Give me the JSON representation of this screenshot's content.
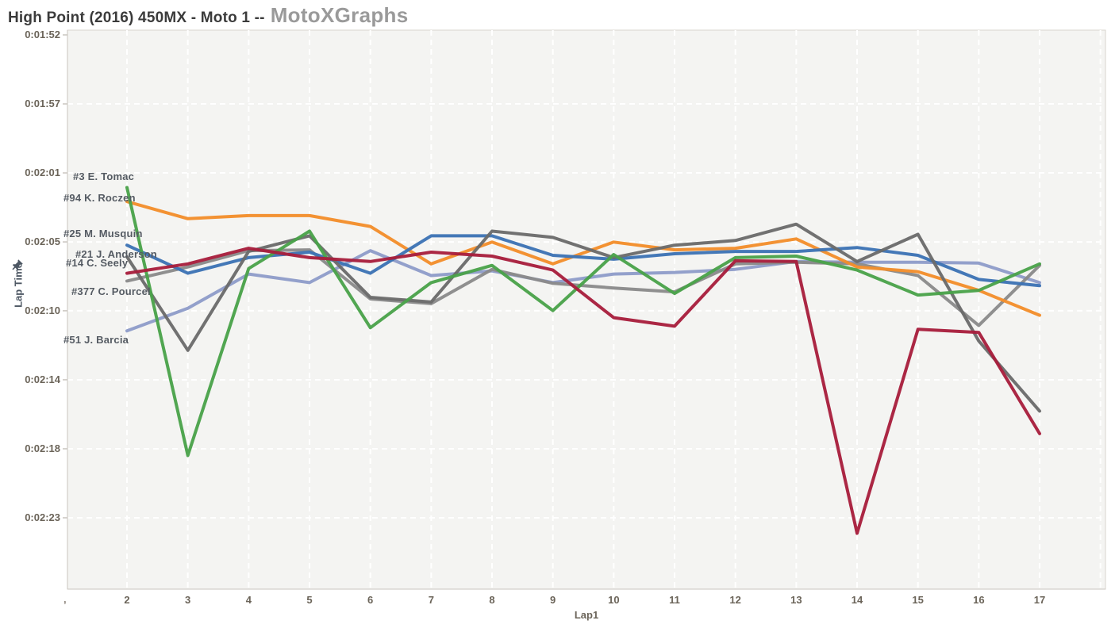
{
  "title": {
    "race": "High Point (2016) 450MX - Moto 1 --",
    "brand": "MotoXGraphs"
  },
  "chart_data": {
    "type": "line",
    "title": "High Point (2016) 450MX - Moto 1 -- MotoXGraphs",
    "xlabel": "Lap1",
    "ylabel": "Lap Time",
    "grid": true,
    "legend_position": "left-inline-labels",
    "y_axis_inverted_note": "time increases downward, faster laps at top",
    "x": [
      2,
      3,
      4,
      5,
      6,
      7,
      8,
      9,
      10,
      11,
      12,
      13,
      14,
      15,
      16,
      17
    ],
    "x_edge_mark": ",",
    "y_ticks": [
      {
        "label": "0:01:52",
        "s": 112.0
      },
      {
        "label": "0:01:57",
        "s": 116.43
      },
      {
        "label": "0:02:01",
        "s": 120.86
      },
      {
        "label": "0:02:05",
        "s": 125.29
      },
      {
        "label": "0:02:10",
        "s": 129.71
      },
      {
        "label": "0:02:14",
        "s": 134.14
      },
      {
        "label": "0:02:18",
        "s": 138.57
      },
      {
        "label": "0:02:23",
        "s": 143.0
      }
    ],
    "series": [
      {
        "id": "barcia",
        "label": "#51 J. Barcia",
        "color": "#8F9CC9",
        "label_s": 131.6,
        "values_s": [
          131.0,
          129.55,
          127.35,
          127.9,
          125.85,
          127.45,
          127.15,
          127.9,
          127.35,
          127.25,
          127.05,
          126.55,
          126.6,
          126.6,
          126.65,
          127.9
        ]
      },
      {
        "id": "pourcel",
        "label": "#377 C. Pourcel",
        "color": "#8A8A8A",
        "label_s": 128.5,
        "values_s": [
          127.8,
          126.9,
          125.85,
          125.8,
          128.95,
          129.25,
          127.05,
          127.95,
          128.25,
          128.5,
          126.7,
          126.6,
          126.7,
          127.45,
          130.65,
          126.8
        ]
      },
      {
        "id": "roczen",
        "label": "#94 K. Roczen",
        "color": "#F28E2B",
        "label_s": 122.5,
        "values_s": [
          122.7,
          123.8,
          123.6,
          123.6,
          124.3,
          126.7,
          125.3,
          126.7,
          125.3,
          125.8,
          125.7,
          125.1,
          126.9,
          127.2,
          128.4,
          130.0
        ]
      },
      {
        "id": "musquin",
        "label": "#25 M. Musquin",
        "color": "#3C73B4",
        "label_s": 124.8,
        "values_s": [
          125.5,
          127.3,
          126.3,
          125.95,
          127.3,
          124.9,
          124.9,
          126.15,
          126.4,
          126.05,
          125.9,
          125.9,
          125.65,
          126.15,
          127.7,
          128.1
        ]
      },
      {
        "id": "anderson",
        "label": "#21 J. Anderson",
        "color": "#6B6B6B",
        "label_s": 126.1,
        "values_s": [
          126.25,
          132.25,
          125.9,
          124.9,
          128.85,
          129.15,
          124.6,
          125.0,
          126.3,
          125.5,
          125.2,
          124.15,
          126.55,
          124.8,
          131.65,
          136.15
        ]
      },
      {
        "id": "tomac",
        "label": "#3 E. Tomac",
        "color": "#4AA24A",
        "label_s": 121.1,
        "values_s": [
          121.8,
          139.0,
          127.0,
          124.6,
          130.8,
          127.9,
          126.8,
          129.7,
          126.1,
          128.6,
          126.3,
          126.2,
          127.1,
          128.7,
          128.4,
          126.7
        ]
      },
      {
        "id": "seely",
        "label": "#14 C. Seely",
        "color": "#A81E3C",
        "label_s": 126.65,
        "values_s": [
          127.3,
          126.7,
          125.7,
          126.3,
          126.55,
          125.95,
          126.2,
          127.1,
          130.15,
          130.7,
          126.5,
          126.55,
          144.0,
          130.9,
          131.1,
          137.6
        ]
      }
    ]
  },
  "colors": {
    "plot_bg": "#f4f4f2",
    "gridline": "#ffffff",
    "axis_line": "#c9c5bf",
    "plot_border": "#d8d4ce",
    "tick_text": "#6b6459",
    "rider_text": "#555b63",
    "title_text": "#3b3b3b",
    "brand_text": "#9a9a9a",
    "y_title_text": "#4d5763"
  }
}
